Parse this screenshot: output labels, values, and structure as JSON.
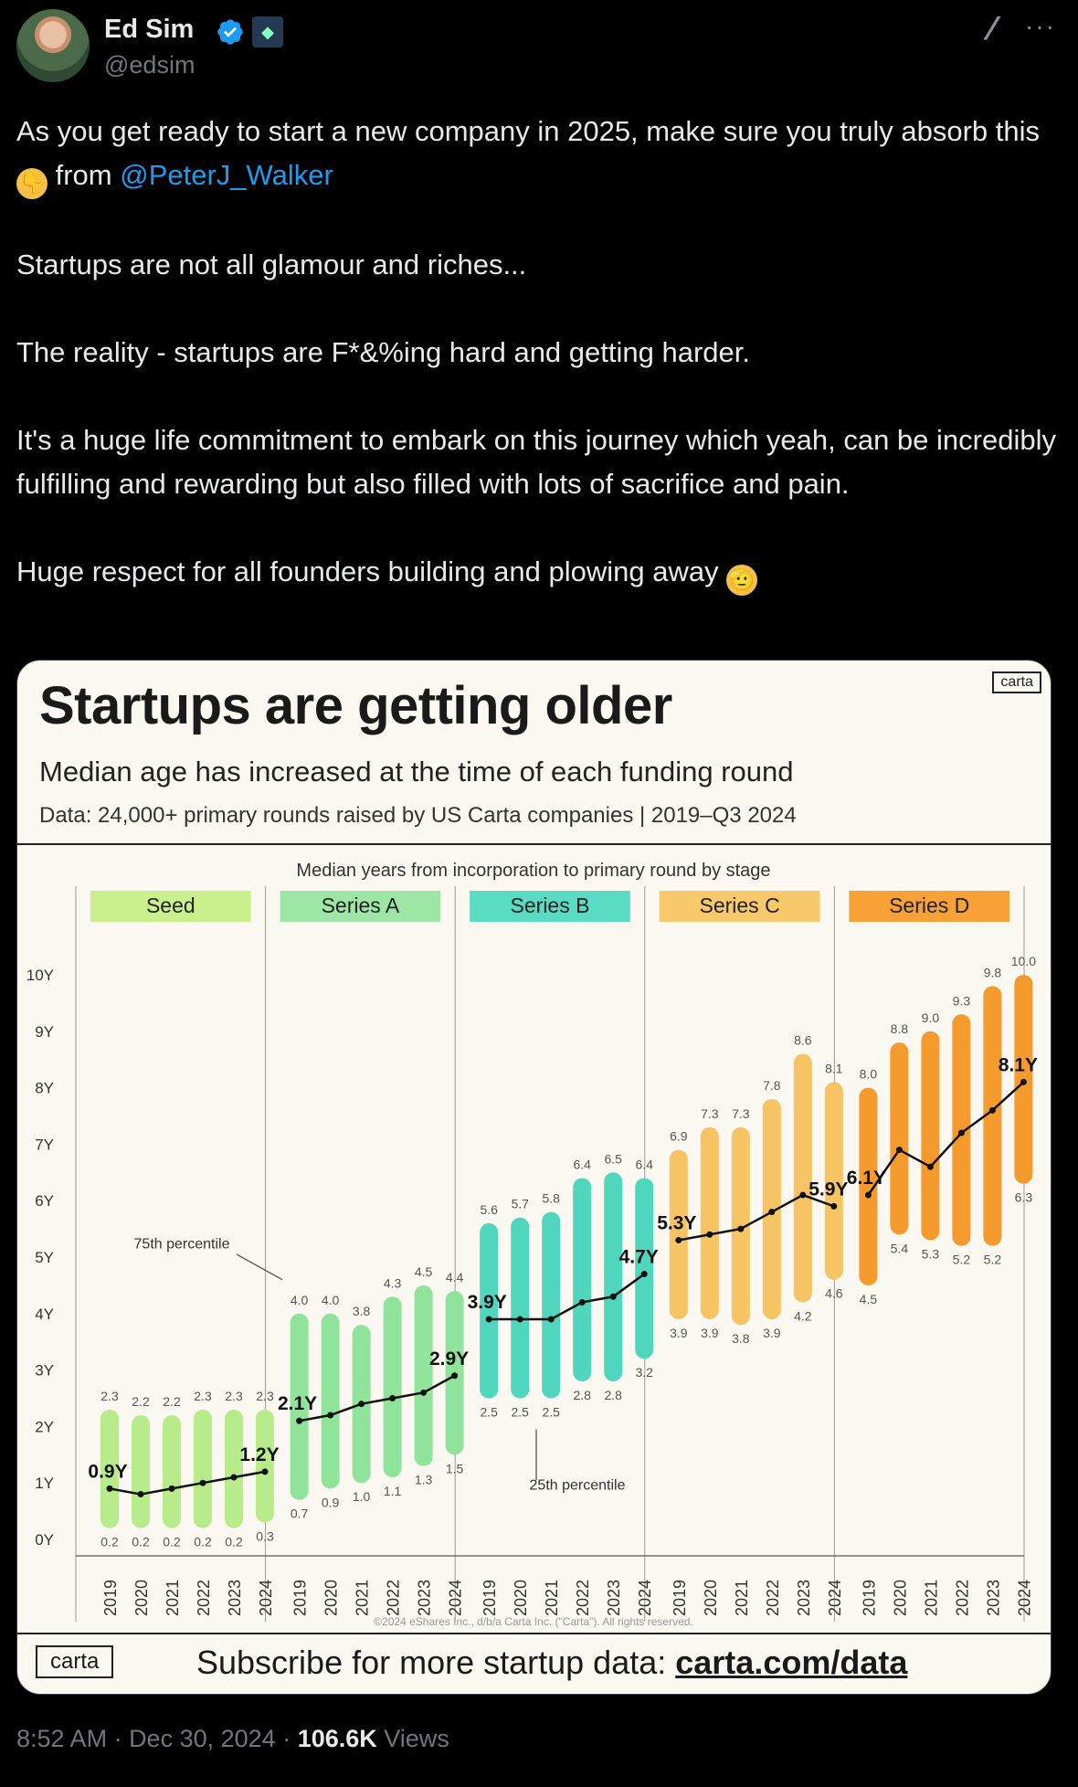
{
  "author": {
    "name": "Ed Sim",
    "handle": "@edsim",
    "avatar_icon": "profile-photo",
    "verified_icon": "verified-badge-icon",
    "affiliation_icon": "affiliate-badge-icon"
  },
  "tweet": {
    "p1_pre": "As you get ready to start a new company in 2025, make sure you truly absorb this ",
    "p1_emoji": "👇",
    "p1_mid": " from ",
    "p1_mention": "@PeterJ_Walker",
    "p2": "Startups are not all glamour and riches...",
    "p3": "The reality - startups are F*&%ing hard and getting harder.",
    "p4": "It's a huge life commitment to embark on this journey which yeah, can be incredibly fulfilling and rewarding but also filled with lots of sacrifice and pain.",
    "p5_pre": "Huge respect for all founders building and plowing away ",
    "p5_emoji": "🫡"
  },
  "card": {
    "logo": "carta",
    "title": "Startups are getting older",
    "subtitle": "Median age has increased at the time of each funding round",
    "source": "Data: 24,000+ primary rounds raised by US Carta companies | 2019–Q3 2024",
    "footer_logo": "carta",
    "footer_pre": "Subscribe for more startup data: ",
    "footer_link": "carta.com/data"
  },
  "chart_data": {
    "type": "bar",
    "title": "Median years from incorporation to primary round by stage",
    "y_ticks": [
      "0Y",
      "1Y",
      "2Y",
      "3Y",
      "4Y",
      "5Y",
      "6Y",
      "7Y",
      "8Y",
      "9Y",
      "10Y"
    ],
    "ylim": [
      0,
      10
    ],
    "copyright": "©2024 eShares Inc., d/b/a Carta Inc. (\"Carta\"). All rights reserved.",
    "annotations": {
      "p75": "75th percentile",
      "p25": "25th percentile"
    },
    "stages": [
      {
        "name": "Seed",
        "label_color": "#c9f08c",
        "bar_color": "#b8ec8a",
        "years": [
          "2019",
          "2020",
          "2021",
          "2022",
          "2023",
          "2024"
        ],
        "p25": [
          0.2,
          0.2,
          0.2,
          0.2,
          0.2,
          0.3
        ],
        "p75": [
          2.3,
          2.2,
          2.2,
          2.3,
          2.3,
          2.3
        ],
        "median": [
          0.9,
          0.8,
          0.9,
          1.0,
          1.1,
          1.2
        ],
        "median_labels": [
          "0.9Y",
          "",
          "",
          "",
          "",
          "1.2Y"
        ]
      },
      {
        "name": "Series A",
        "label_color": "#9ee6a6",
        "bar_color": "#8fe39a",
        "years": [
          "2019",
          "2020",
          "2021",
          "2022",
          "2023",
          "2024"
        ],
        "p25": [
          0.7,
          0.9,
          1.0,
          1.1,
          1.3,
          1.5
        ],
        "p75": [
          4.0,
          4.0,
          3.8,
          4.3,
          4.5,
          4.4
        ],
        "median": [
          2.1,
          2.2,
          2.4,
          2.5,
          2.6,
          2.9
        ],
        "median_labels": [
          "2.1Y",
          "",
          "",
          "",
          "",
          "2.9Y"
        ]
      },
      {
        "name": "Series B",
        "label_color": "#59dbc4",
        "bar_color": "#4fd6bd",
        "years": [
          "2019",
          "2020",
          "2021",
          "2022",
          "2023",
          "2024"
        ],
        "p25": [
          2.5,
          2.5,
          2.5,
          2.8,
          2.8,
          3.2
        ],
        "p75": [
          5.6,
          5.7,
          5.8,
          6.4,
          6.5,
          6.4
        ],
        "median": [
          3.9,
          3.9,
          3.9,
          4.2,
          4.3,
          4.7
        ],
        "median_labels": [
          "3.9Y",
          "",
          "",
          "",
          "",
          "4.7Y"
        ]
      },
      {
        "name": "Series C",
        "label_color": "#f7c96a",
        "bar_color": "#f6c462",
        "years": [
          "2019",
          "2020",
          "2021",
          "2022",
          "2023",
          "2024"
        ],
        "p25": [
          3.9,
          3.9,
          3.8,
          3.9,
          4.2,
          4.6
        ],
        "p75": [
          6.9,
          7.3,
          7.3,
          7.8,
          8.6,
          8.1
        ],
        "median": [
          5.3,
          5.4,
          5.5,
          5.8,
          6.1,
          5.9
        ],
        "median_labels": [
          "5.3Y",
          "",
          "",
          "",
          "",
          "5.9Y"
        ]
      },
      {
        "name": "Series D",
        "label_color": "#f7a137",
        "bar_color": "#f59a2c",
        "years": [
          "2019",
          "2020",
          "2021",
          "2022",
          "2023",
          "2024"
        ],
        "p25": [
          4.5,
          5.4,
          5.3,
          5.2,
          5.2,
          6.3
        ],
        "p75": [
          8.0,
          8.8,
          9.0,
          9.3,
          9.8,
          10.0
        ],
        "median": [
          6.1,
          6.9,
          6.6,
          7.2,
          7.6,
          8.1
        ],
        "median_labels": [
          "6.1Y",
          "",
          "",
          "",
          "",
          "8.1Y"
        ]
      }
    ]
  },
  "meta": {
    "time": "8:52 AM",
    "sep1": " · ",
    "date": "Dec 30, 2024",
    "sep2": " · ",
    "views_num": "106.6K",
    "views_label": " Views"
  }
}
